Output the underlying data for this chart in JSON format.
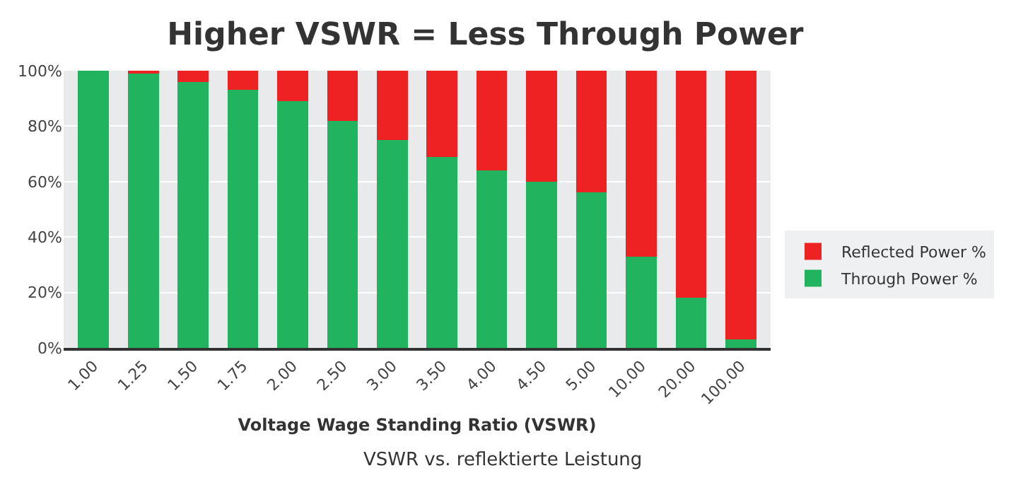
{
  "chart_data": {
    "type": "bar",
    "title": "Higher VSWR = Less Through Power",
    "xlabel": "Voltage Wage Standing Ratio (VSWR)",
    "categories": [
      "1.00",
      "1.25",
      "1.50",
      "1.75",
      "2.00",
      "2.50",
      "3.00",
      "3.50",
      "4.00",
      "4.50",
      "5.00",
      "10.00",
      "20.00",
      "100.00"
    ],
    "stacked": true,
    "series": [
      {
        "name": "Through Power %",
        "color": "#22b35e",
        "values": [
          100,
          99,
          96,
          93,
          89,
          82,
          75,
          69,
          64,
          60,
          56,
          33,
          18,
          3
        ]
      },
      {
        "name": "Reflected Power %",
        "color": "#ee2222",
        "values": [
          0,
          1,
          4,
          7,
          11,
          18,
          25,
          31,
          36,
          40,
          44,
          67,
          82,
          97
        ]
      }
    ],
    "ylim": [
      0,
      100
    ],
    "yticks": [
      {
        "value": 0,
        "label": "0%"
      },
      {
        "value": 20,
        "label": "20%"
      },
      {
        "value": 40,
        "label": "40%"
      },
      {
        "value": 60,
        "label": "60%"
      },
      {
        "value": 80,
        "label": "80%"
      },
      {
        "value": 100,
        "label": "100%"
      }
    ],
    "grid": "y",
    "legend": "right",
    "annotations": [
      "VSWR vs. reflektierte Leistung"
    ]
  }
}
